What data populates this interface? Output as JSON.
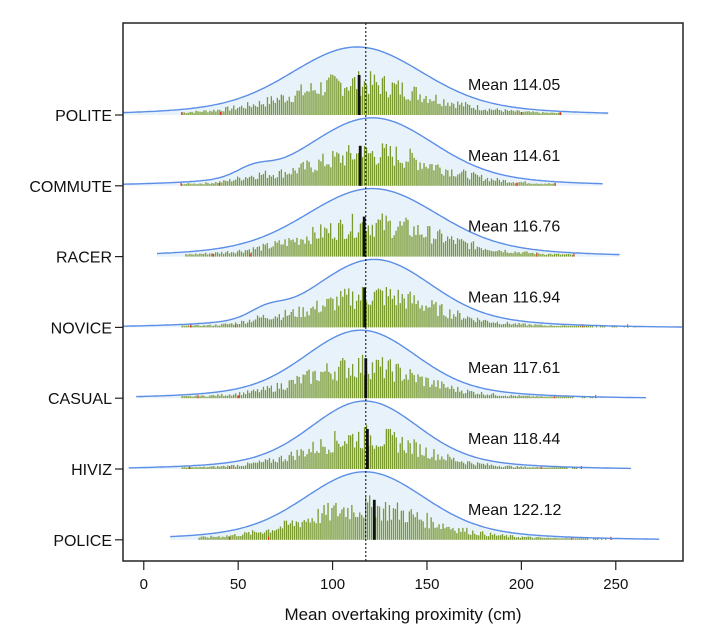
{
  "chart_data": {
    "type": "area",
    "title": "",
    "xlabel": "Mean overtaking proximity (cm)",
    "ylabel": "",
    "xlim": [
      -11,
      285.6
    ],
    "xticks": [
      0,
      50,
      100,
      150,
      200,
      250
    ],
    "grid": false,
    "reference_line": {
      "x": 117.6,
      "style": "dotted"
    },
    "colors": {
      "density_line": "#5b8ee6",
      "density_fill": "#e8f2fb",
      "bars": "#7a9a2e",
      "mean_bar": "#111111",
      "outliers": "#e03020"
    },
    "series": [
      {
        "name": "POLITE",
        "mean": 114.05,
        "mean_label": "Mean 114.05",
        "peak": 113,
        "sd": 33,
        "range": [
          -11,
          246
        ]
      },
      {
        "name": "COMMUTE",
        "mean": 114.61,
        "mean_label": "Mean 114.61",
        "peak": 121,
        "sd": 31,
        "range": [
          -11,
          243
        ],
        "shoulder": 58
      },
      {
        "name": "RACER",
        "mean": 116.76,
        "mean_label": "Mean 116.76",
        "peak": 121,
        "sd": 33,
        "range": [
          7,
          252
        ]
      },
      {
        "name": "NOVICE",
        "mean": 116.94,
        "mean_label": "Mean 116.94",
        "peak": 122,
        "sd": 29,
        "range": [
          -11,
          285.6
        ],
        "shoulder": 65
      },
      {
        "name": "CASUAL",
        "mean": 117.61,
        "mean_label": "Mean 117.61",
        "peak": 115,
        "sd": 28,
        "range": [
          -4,
          266
        ]
      },
      {
        "name": "HIVIZ",
        "mean": 118.44,
        "mean_label": "Mean 118.44",
        "peak": 117,
        "sd": 27,
        "range": [
          -8,
          258
        ]
      },
      {
        "name": "POLICE",
        "mean": 122.12,
        "mean_label": "Mean 122.12",
        "peak": 117,
        "sd": 30,
        "range": [
          14,
          273
        ]
      }
    ]
  }
}
